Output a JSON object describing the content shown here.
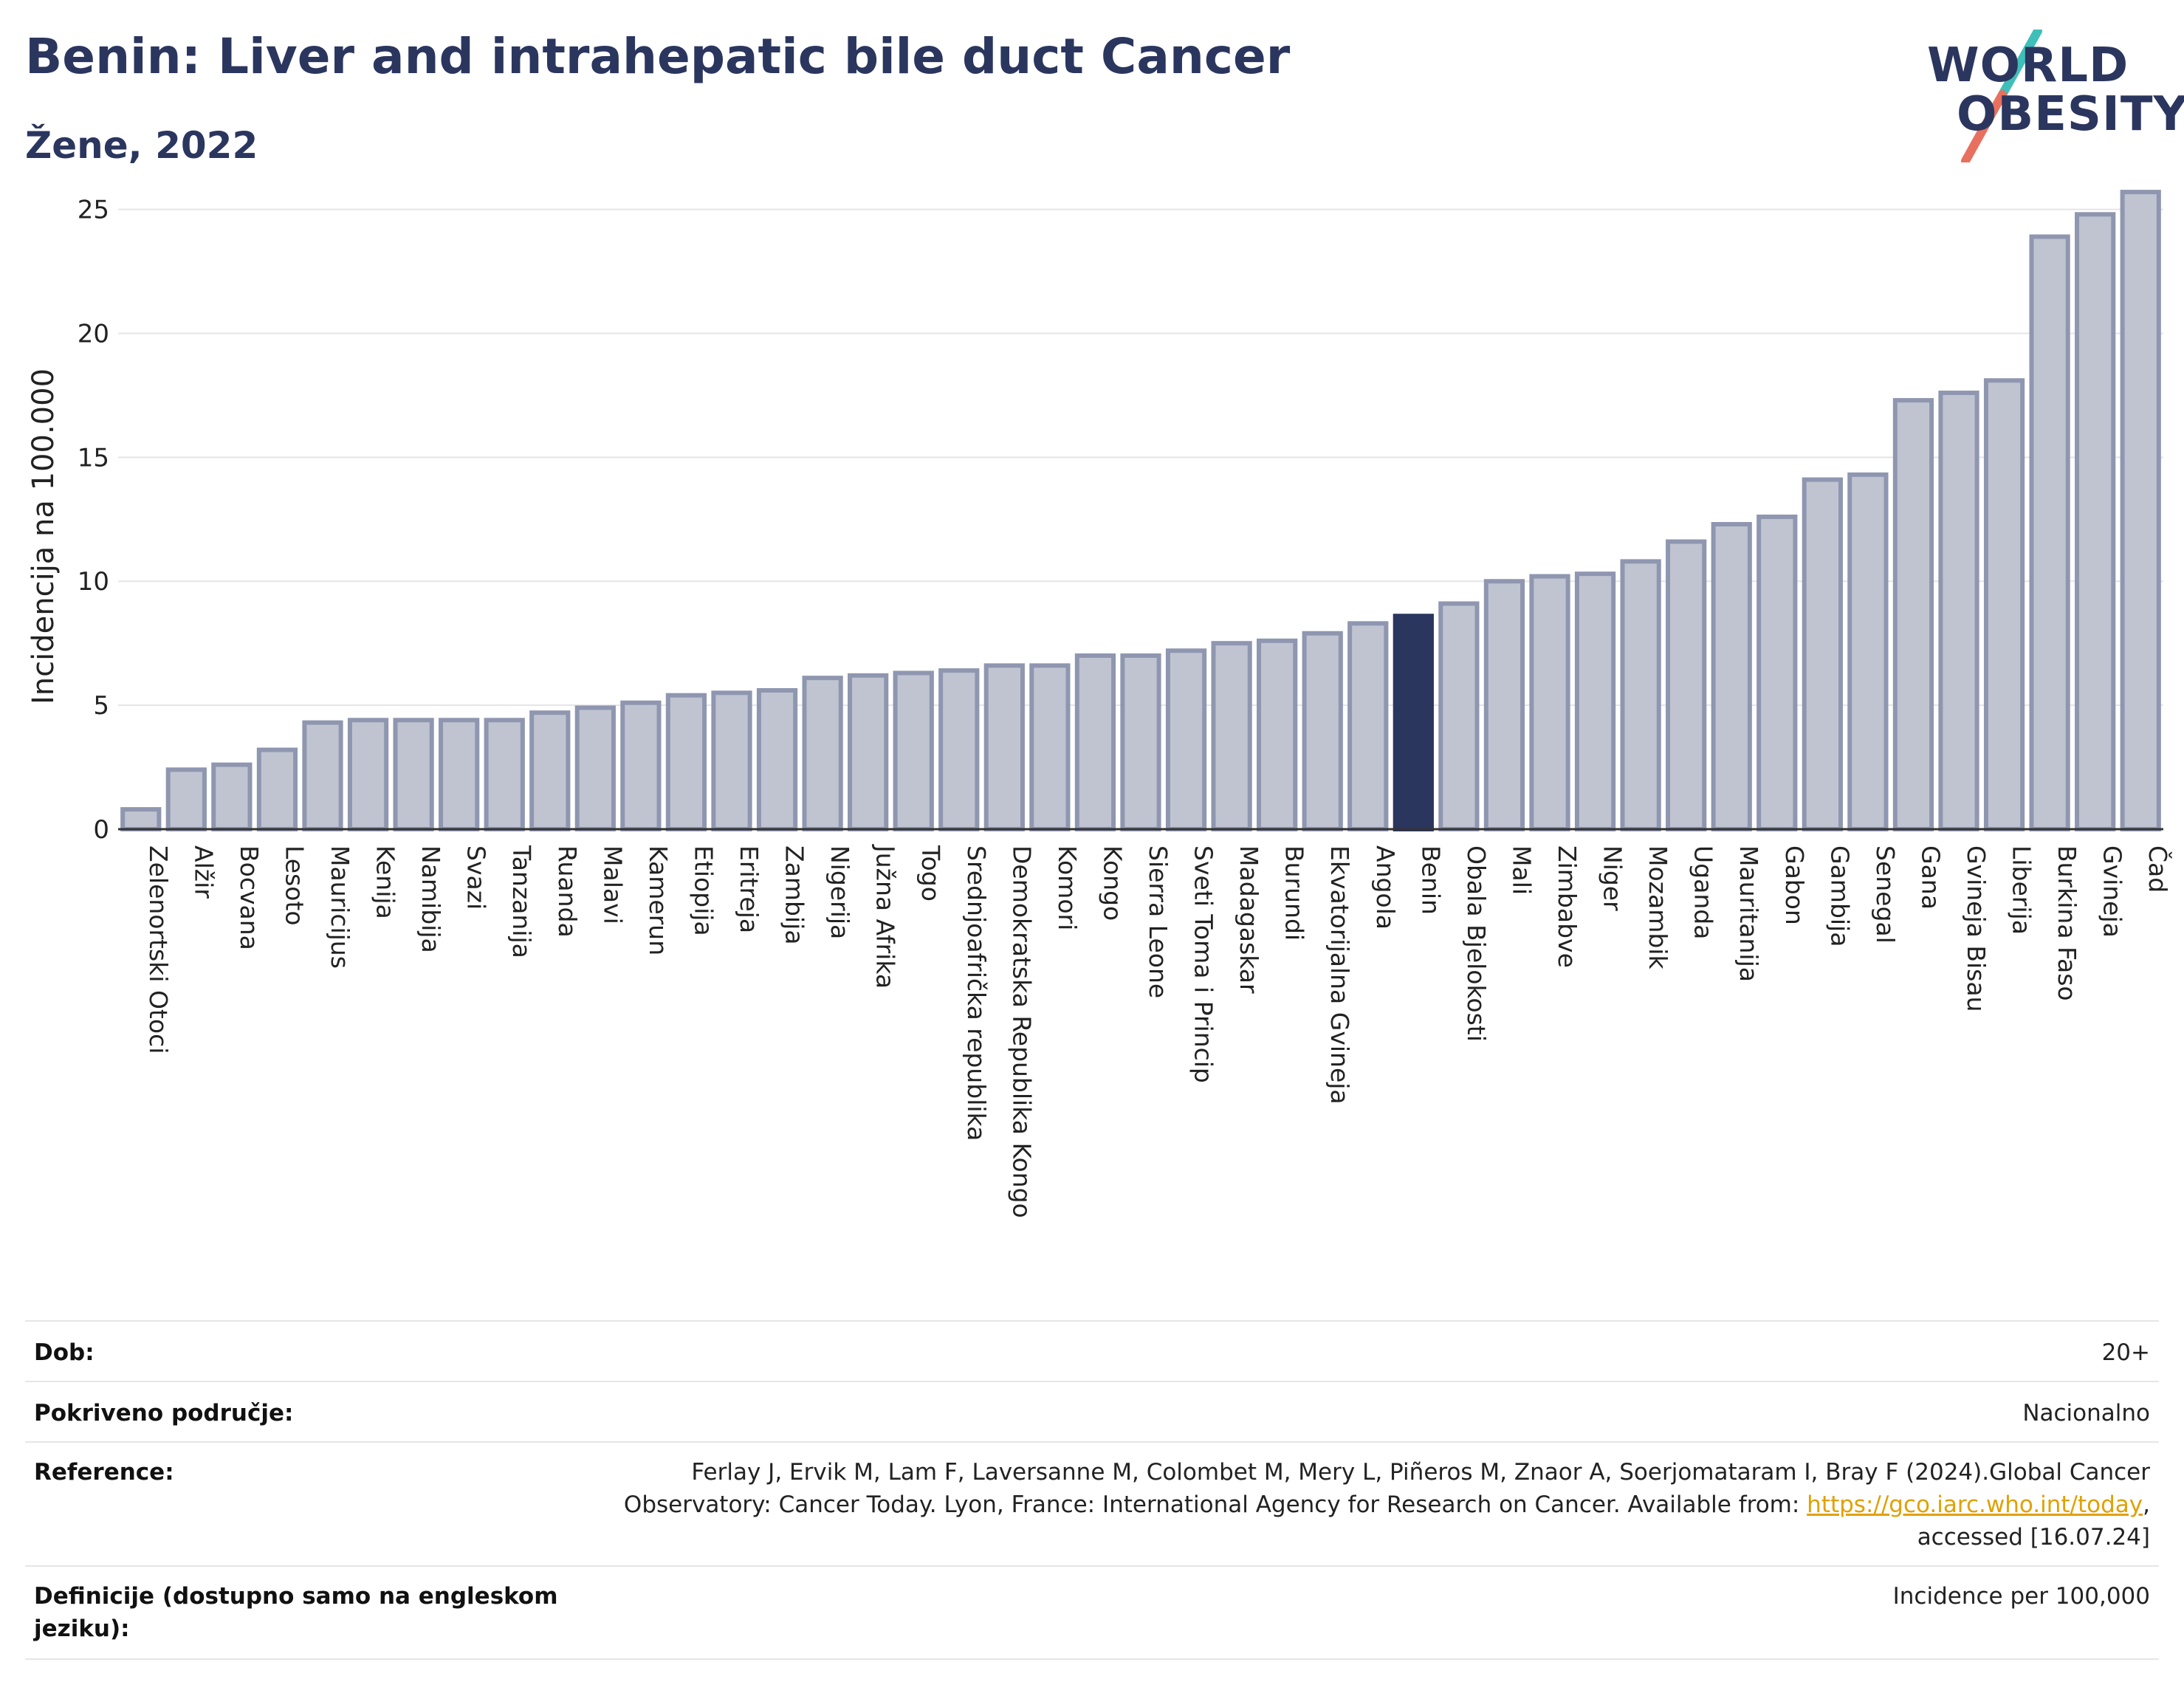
{
  "header": {
    "title": "Benin: Liver and intrahepatic bile duct Cancer",
    "subtitle": "Žene, 2022"
  },
  "logo": {
    "line1": "WORLD",
    "line2": "OBESITY",
    "icon": "slash-mark-icon",
    "colors": {
      "text": "#2b365f",
      "slash_top": "#3fbfb8",
      "slash_bottom": "#e8705f"
    }
  },
  "chart_data": {
    "type": "bar",
    "ylabel": "Incidencija na 100.000",
    "xlabel": "",
    "ylim": [
      0,
      26
    ],
    "yticks": [
      0,
      5,
      10,
      15,
      20,
      25
    ],
    "grid": true,
    "highlight": "Benin",
    "colors": {
      "bar": "#c0c4d1",
      "bar_border": "#8f96b0",
      "highlight": "#2b365f"
    },
    "categories": [
      "Zelenortski Otoci",
      "Alžir",
      "Bocvana",
      "Lesoto",
      "Mauricijus",
      "Kenija",
      "Namibija",
      "Svazi",
      "Tanzanija",
      "Ruanda",
      "Malavi",
      "Kamerun",
      "Etiopija",
      "Eritreja",
      "Zambija",
      "Nigerija",
      "Južna Afrika",
      "Togo",
      "Srednjoafrička republika",
      "Demokratska Republika Kongo",
      "Komori",
      "Kongo",
      "Sierra Leone",
      "Sveti Toma i Princip",
      "Madagaskar",
      "Burundi",
      "Ekvatorijalna Gvineja",
      "Angola",
      "Benin",
      "Obala Bjelokosti",
      "Mali",
      "Zimbabve",
      "Niger",
      "Mozambik",
      "Uganda",
      "Mauritanija",
      "Gabon",
      "Gambija",
      "Senegal",
      "Gana",
      "Gvineja Bisau",
      "Liberija",
      "Burkina Faso",
      "Gvineja",
      "Čad"
    ],
    "values": [
      0.8,
      2.4,
      2.6,
      3.2,
      4.3,
      4.4,
      4.4,
      4.4,
      4.4,
      4.7,
      4.9,
      5.1,
      5.4,
      5.5,
      5.6,
      6.1,
      6.2,
      6.3,
      6.4,
      6.6,
      6.6,
      7.0,
      7.0,
      7.2,
      7.5,
      7.6,
      7.9,
      8.3,
      8.6,
      9.1,
      10.0,
      10.2,
      10.3,
      10.8,
      11.6,
      12.3,
      12.6,
      14.1,
      14.3,
      17.3,
      17.6,
      18.1,
      23.9,
      24.8,
      25.7
    ]
  },
  "meta": {
    "rows": [
      {
        "label": "Dob:",
        "value": "20+"
      },
      {
        "label": "Pokriveno područje:",
        "value": "Nacionalno"
      },
      {
        "label": "Reference:",
        "value_line1": "Ferlay J, Ervik M, Lam F, Laversanne M, Colombet M, Mery L, Piñeros M, Znaor A, Soerjomataram I, Bray F (2024).Global Cancer",
        "value_line2": "Observatory: Cancer Today. Lyon, France: International Agency for Research on Cancer. Available from: ",
        "link": "https://gco.iarc.who.int/today",
        "after_link": ",",
        "value_line3": "accessed [16.07.24]"
      },
      {
        "label_line1": "Definicije (dostupno samo na engleskom",
        "label_line2": "jeziku):",
        "value": "Incidence per 100,000"
      }
    ]
  }
}
